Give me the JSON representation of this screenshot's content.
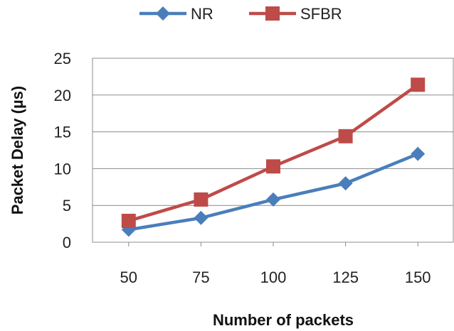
{
  "chart_data": {
    "type": "line",
    "title": "",
    "xlabel": "Number of packets",
    "ylabel": "Packet Delay (µs)",
    "categories": [
      "50",
      "75",
      "100",
      "125",
      "150"
    ],
    "ylim": [
      0,
      25
    ],
    "yticks": [
      0,
      5,
      10,
      15,
      20,
      25
    ],
    "grid": "horizontal",
    "legend_position": "top",
    "series": [
      {
        "name": "NR",
        "values": [
          1.7,
          3.3,
          5.8,
          8.0,
          12.0
        ],
        "color": "#4a7ebb",
        "marker": "diamond"
      },
      {
        "name": "SFBR",
        "values": [
          2.9,
          5.8,
          10.3,
          14.4,
          21.4
        ],
        "color": "#be4b48",
        "marker": "square"
      }
    ]
  }
}
